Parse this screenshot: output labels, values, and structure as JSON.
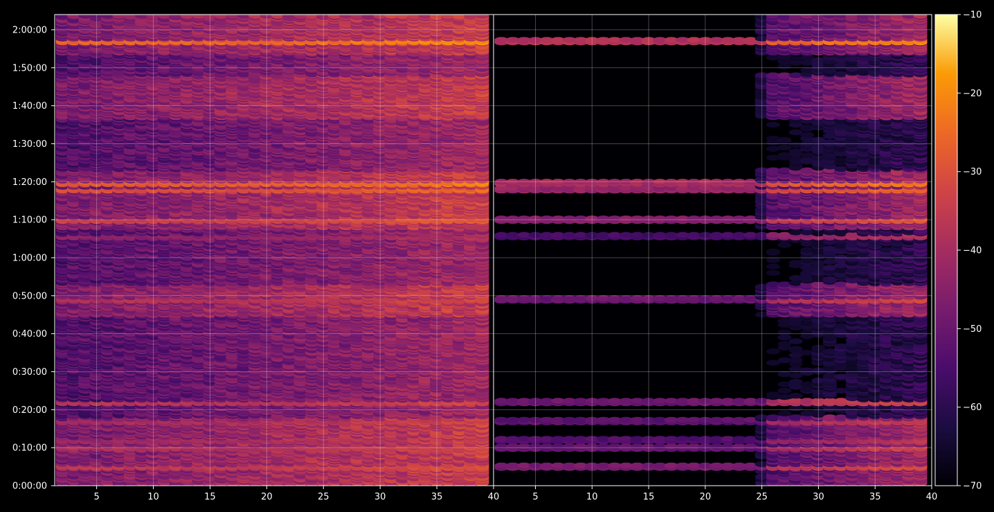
{
  "chart_data": {
    "type": "heatmap",
    "title": "",
    "xlabel": "",
    "ylabel": "",
    "grid": true,
    "colormap": "inferno",
    "colorbar": {
      "range": [
        -70,
        -10
      ],
      "ticks": [
        -10,
        -20,
        -30,
        -40,
        -50,
        -60,
        -70
      ],
      "tick_labels": [
        "−10",
        "−20",
        "−30",
        "−40",
        "−50",
        "−60",
        "−70"
      ]
    },
    "y_axis": {
      "range_seconds": [
        0,
        7440
      ],
      "ticks_seconds": [
        0,
        600,
        1200,
        1800,
        2400,
        3000,
        3600,
        4200,
        4800,
        5400,
        6000,
        6600,
        7200
      ],
      "tick_labels": [
        "0:00:00",
        "0:10:00",
        "0:20:00",
        "0:30:00",
        "0:40:00",
        "0:50:00",
        "1:00:00",
        "1:10:00",
        "1:20:00",
        "1:30:00",
        "1:40:00",
        "1:50:00",
        "2:00:00"
      ]
    },
    "panels": [
      {
        "name": "left",
        "x_range": [
          1.3,
          40
        ],
        "x_ticks": [
          5,
          10,
          15,
          20,
          25,
          30,
          35,
          40
        ],
        "x_tick_labels": [
          "5",
          "10",
          "15",
          "20",
          "25",
          "30",
          "35",
          "40"
        ],
        "base_level": -48,
        "column_trend": "brighter toward higher channel numbers"
      },
      {
        "name": "right",
        "x_range": [
          1.3,
          40
        ],
        "x_ticks": [
          5,
          10,
          15,
          20,
          25,
          30,
          35,
          40
        ],
        "x_tick_labels": [
          "5",
          "10",
          "15",
          "20",
          "25",
          "30",
          "35",
          "40"
        ],
        "base_level": -68,
        "column_trend": "near -70 for channels below 25, bands visible above 25"
      }
    ],
    "bright_rows": [
      {
        "time_seconds": 7020,
        "level": -20
      },
      {
        "time_seconds": 4780,
        "level": -22
      },
      {
        "time_seconds": 4680,
        "level": -25
      },
      {
        "time_seconds": 4200,
        "level": -28
      },
      {
        "time_seconds": 3940,
        "level": -38
      },
      {
        "time_seconds": 2940,
        "level": -32
      },
      {
        "time_seconds": 1320,
        "level": -32
      },
      {
        "time_seconds": 1020,
        "level": -34
      },
      {
        "time_seconds": 720,
        "level": -36
      },
      {
        "time_seconds": 600,
        "level": -33
      },
      {
        "time_seconds": 300,
        "level": -30
      }
    ],
    "active_bands_seconds": [
      [
        0,
        1080
      ],
      [
        2700,
        3180
      ],
      [
        5820,
        6480
      ],
      [
        4080,
        4980
      ],
      [
        6840,
        7440
      ]
    ]
  }
}
